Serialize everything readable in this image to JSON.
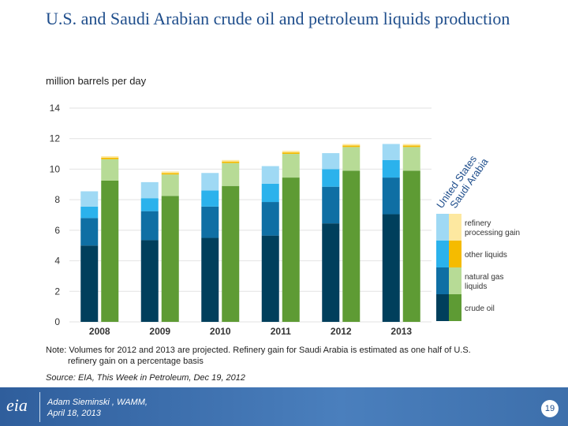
{
  "slide": {
    "title": "U.S. and Saudi Arabian crude oil and petroleum liquids production",
    "unit_label": "million barrels per day",
    "note_line1": "Note: Volumes for 2012 and 2013 are projected.  Refinery gain for Saudi Arabia is estimated as one half of U.S.",
    "note_line2": "refinery gain on a percentage basis",
    "source": "Source: EIA, This Week in Petroleum, Dec 19, 2012",
    "footer_author": "Adam Sieminski , WAMM,",
    "footer_date": "April 18, 2013",
    "logo_text": "eia",
    "page_number": "19"
  },
  "chart_data": {
    "type": "bar",
    "stacked": true,
    "categories": [
      "2008",
      "2009",
      "2010",
      "2011",
      "2012",
      "2013"
    ],
    "ylim": [
      0,
      14
    ],
    "yticks": [
      0,
      2,
      4,
      6,
      8,
      10,
      12,
      14
    ],
    "grid": true,
    "groups": [
      "United States",
      "Saudi Arabia"
    ],
    "series": [
      {
        "group": "United States",
        "name": "crude oil",
        "color": "#003f5c",
        "values": [
          5.0,
          5.35,
          5.5,
          5.65,
          6.45,
          7.05
        ]
      },
      {
        "group": "United States",
        "name": "natural gas liquids",
        "color": "#0f6fa4",
        "values": [
          1.8,
          1.9,
          2.05,
          2.2,
          2.4,
          2.4
        ]
      },
      {
        "group": "United States",
        "name": "other liquids",
        "color": "#2bb2ec",
        "values": [
          0.75,
          0.85,
          1.05,
          1.2,
          1.15,
          1.15
        ]
      },
      {
        "group": "United States",
        "name": "refinery processing gain",
        "color": "#9fd9f4",
        "values": [
          1.0,
          1.05,
          1.15,
          1.15,
          1.05,
          1.05
        ]
      },
      {
        "group": "Saudi Arabia",
        "name": "crude oil",
        "color": "#5e9b34",
        "values": [
          9.25,
          8.25,
          8.9,
          9.45,
          9.9,
          9.9
        ]
      },
      {
        "group": "Saudi Arabia",
        "name": "natural gas liquids",
        "color": "#b7db96",
        "values": [
          1.4,
          1.4,
          1.5,
          1.55,
          1.55,
          1.55
        ]
      },
      {
        "group": "Saudi Arabia",
        "name": "other liquids",
        "color": "#f5bb00",
        "values": [
          0.1,
          0.1,
          0.1,
          0.1,
          0.1,
          0.1
        ]
      },
      {
        "group": "Saudi Arabia",
        "name": "refinery processing gain",
        "color": "#fde8a0",
        "values": [
          0.1,
          0.1,
          0.1,
          0.1,
          0.1,
          0.1
        ]
      }
    ],
    "legend": {
      "header_us": "United States",
      "header_sa": "Saudi Arabia",
      "items": [
        {
          "label": "refinery processing gain",
          "us_color": "#9fd9f4",
          "sa_color": "#fde8a0"
        },
        {
          "label": "other liquids",
          "us_color": "#2bb2ec",
          "sa_color": "#f5bb00"
        },
        {
          "label": "natural gas liquids",
          "us_color": "#0f6fa4",
          "sa_color": "#b7db96"
        },
        {
          "label": "crude oil",
          "us_color": "#003f5c",
          "sa_color": "#5e9b34"
        }
      ]
    }
  }
}
